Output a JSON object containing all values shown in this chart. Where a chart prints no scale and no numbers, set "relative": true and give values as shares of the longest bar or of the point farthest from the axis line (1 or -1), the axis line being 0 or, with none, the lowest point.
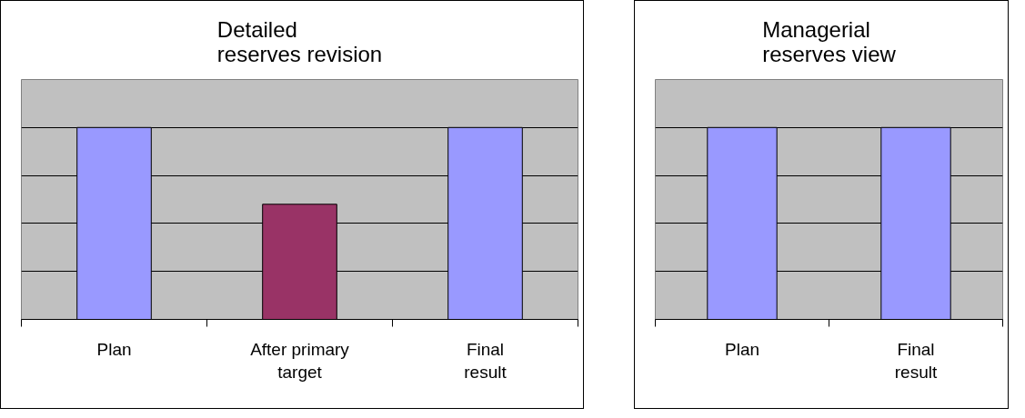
{
  "chart_data": [
    {
      "type": "bar",
      "title": "Detailed reserves revision",
      "categories": [
        "Plan",
        "After primary target",
        "Final result"
      ],
      "values": [
        1,
        0.6,
        1
      ],
      "colors": [
        "#9999ff",
        "#993366",
        "#9999ff"
      ],
      "relative": true,
      "grid": "y"
    },
    {
      "type": "bar",
      "title": "Managerial reserves view",
      "categories": [
        "Plan",
        "Final result"
      ],
      "values": [
        1,
        1
      ],
      "colors": [
        "#9999ff",
        "#9999ff"
      ],
      "relative": true,
      "grid": "y"
    }
  ]
}
